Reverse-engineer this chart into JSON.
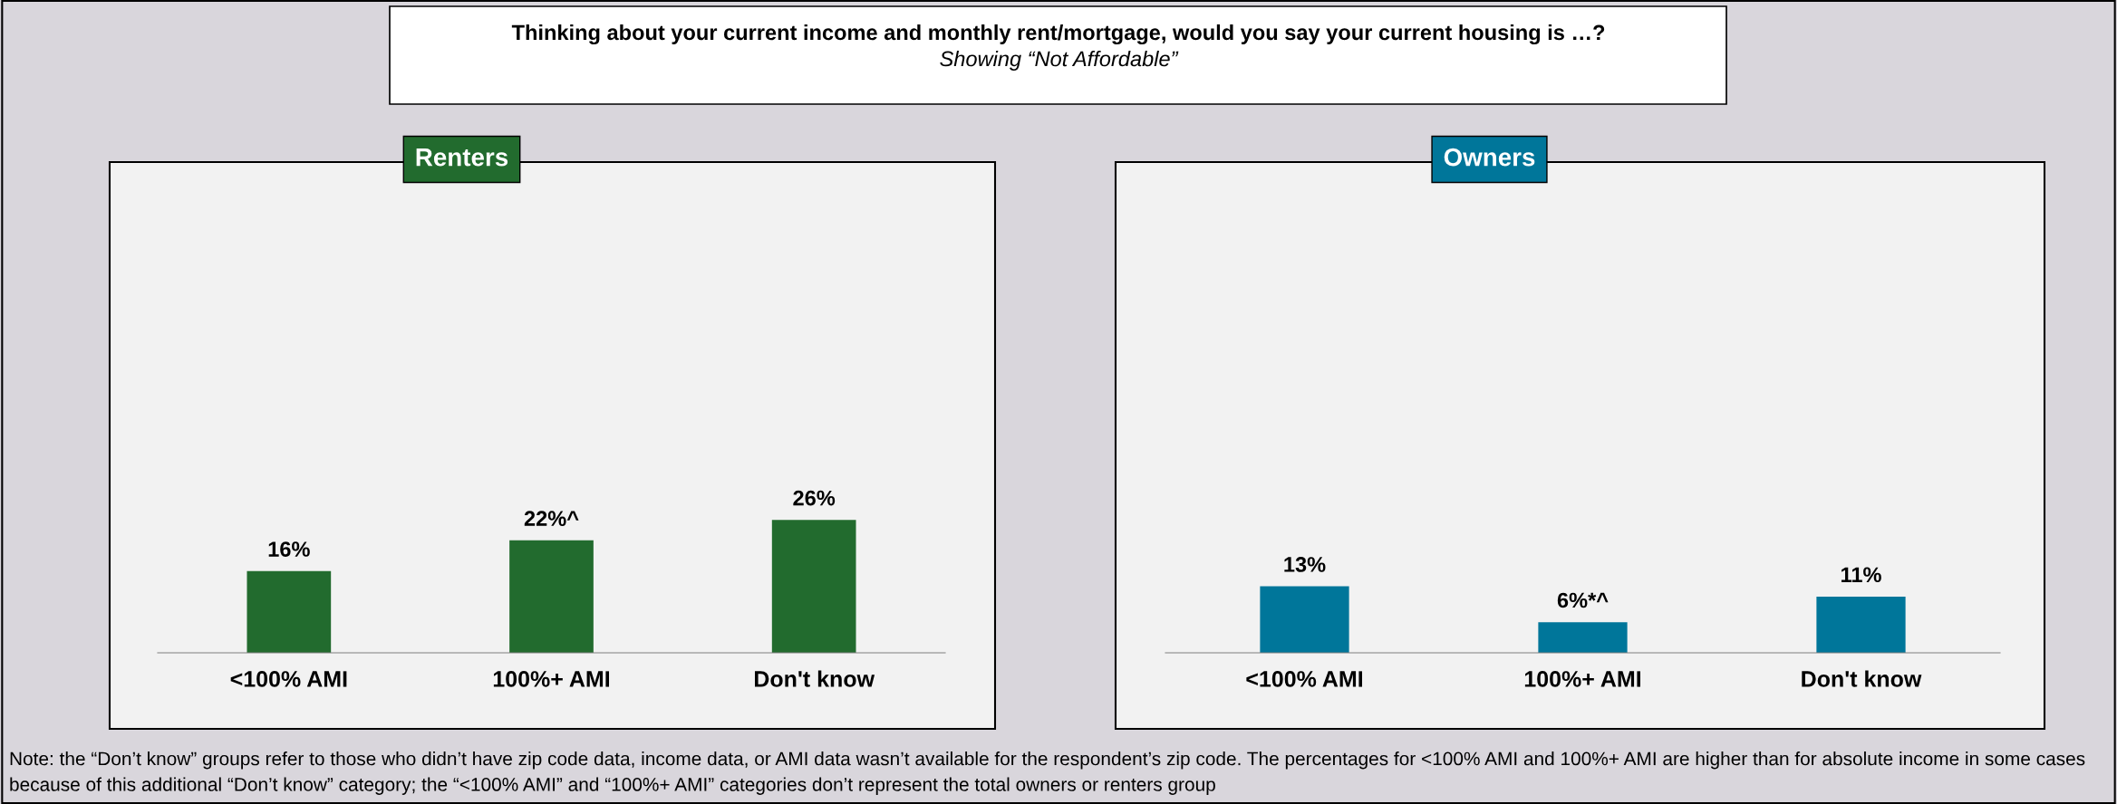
{
  "chart_data": [
    {
      "type": "bar",
      "title": "Renters",
      "categories": [
        "<100% AMI",
        "100%+ AMI",
        "Don't know"
      ],
      "values": [
        16,
        22,
        26
      ],
      "value_labels": [
        "16%",
        "22%^",
        "26%"
      ],
      "color": "#226b2e",
      "ylim": [
        0,
        96
      ],
      "grid": false,
      "legend": false,
      "annotations": [
        "Thinking about your current income and monthly rent/mortgage, would you say your current housing is …?",
        "Showing “Not Affordable”",
        "Note: the “Don’t know” groups refer to those who didn’t have zip code data, income data, or AMI data wasn’t available for the respondent’s zip code. The percentages for <100% AMI and 100%+ AMI are higher than for absolute income in some cases because of this additional “Don’t know” category; the “<100% AMI” and “100%+ AMI” categories don’t represent the total owners or renters group"
      ]
    },
    {
      "type": "bar",
      "title": "Owners",
      "categories": [
        "<100% AMI",
        "100%+ AMI",
        "Don't know"
      ],
      "values": [
        13,
        6,
        11
      ],
      "value_labels": [
        "13%",
        "6%*^",
        "11%"
      ],
      "color": "#00769a",
      "ylim": [
        0,
        96
      ],
      "grid": false,
      "legend": false
    }
  ]
}
